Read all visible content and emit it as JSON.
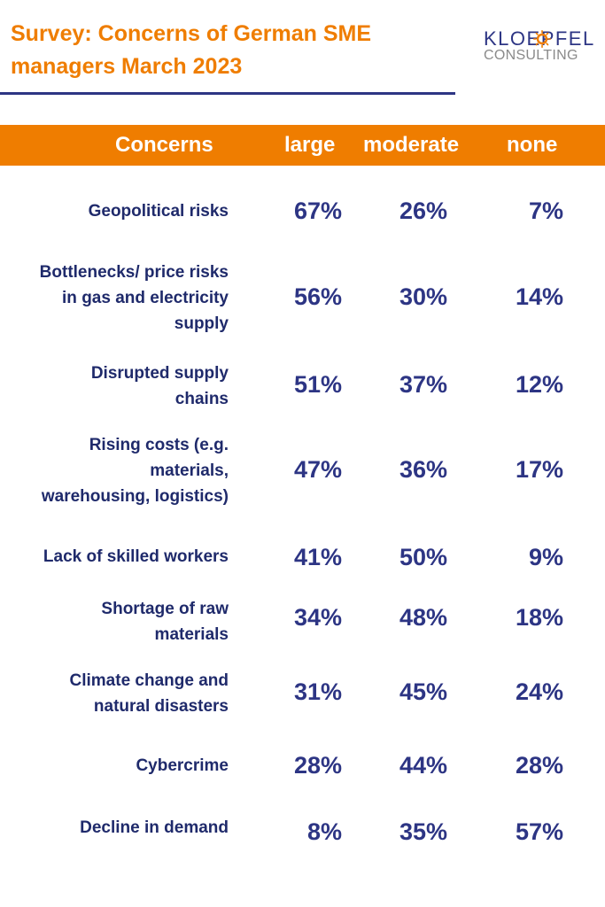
{
  "title": "Survey: Concerns of German SME\nmanagers March 2023",
  "logo": {
    "line1": "KLOEPFEL",
    "line2": "CONSULTING"
  },
  "colors": {
    "accent": "#ef7d00",
    "navy": "#2d3584",
    "label": "#1f2a6b"
  },
  "chart_data": {
    "type": "table",
    "columns": [
      "Concerns",
      "large",
      "moderate",
      "none"
    ],
    "rows": [
      {
        "concern": "Geopolitical risks",
        "large": "67%",
        "moderate": "26%",
        "none": "7%"
      },
      {
        "concern": "Bottlenecks/ price risks\nin gas and electricity\nsupply",
        "large": "56%",
        "moderate": "30%",
        "none": "14%"
      },
      {
        "concern": "Disrupted supply\nchains",
        "large": "51%",
        "moderate": "37%",
        "none": "12%"
      },
      {
        "concern": "Rising costs (e.g.\nmaterials,\nwarehousing, logistics)",
        "large": "47%",
        "moderate": "36%",
        "none": "17%"
      },
      {
        "concern": "Lack of skilled workers",
        "large": "41%",
        "moderate": "50%",
        "none": "9%"
      },
      {
        "concern": "Shortage of raw\nmaterials",
        "large": "34%",
        "moderate": "48%",
        "none": "18%"
      },
      {
        "concern": "Climate change and\nnatural disasters",
        "large": "31%",
        "moderate": "45%",
        "none": "24%"
      },
      {
        "concern": "Cybercrime",
        "large": "28%",
        "moderate": "44%",
        "none": "28%"
      },
      {
        "concern": "Decline in demand",
        "large": "8%",
        "moderate": "35%",
        "none": "57%"
      }
    ]
  }
}
